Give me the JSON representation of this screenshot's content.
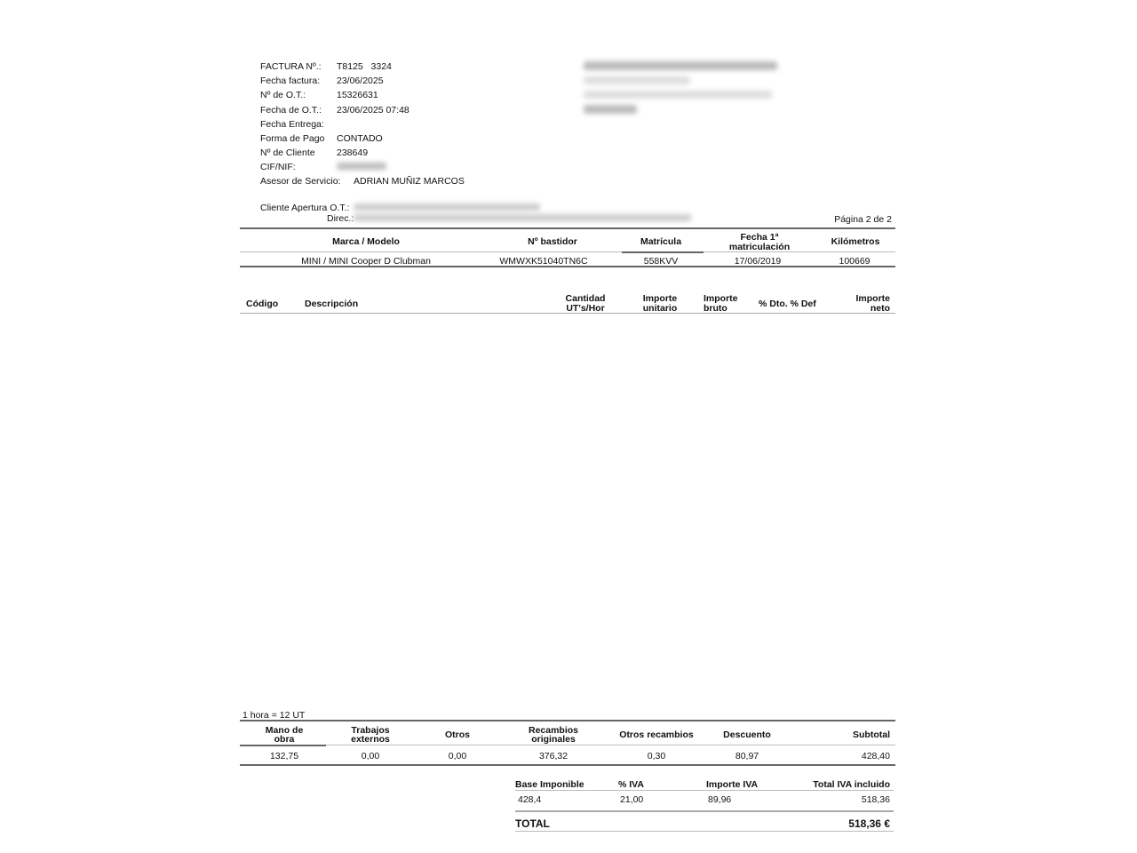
{
  "header": {
    "fields": [
      {
        "label": "FACTURA Nº.:",
        "value": "T8125   3324"
      },
      {
        "label": "Fecha factura:",
        "value": "23/06/2025"
      },
      {
        "label": "Nº de O.T.:",
        "value": "15326631"
      },
      {
        "label": "Fecha de O.T.:",
        "value": "23/06/2025 07:48"
      },
      {
        "label": "Fecha Entrega:",
        "value": ""
      },
      {
        "label": "Forma de Pago",
        "value": "CONTADO"
      },
      {
        "label": "Nº de Cliente",
        "value": "238649"
      },
      {
        "label": "CIF/NIF:",
        "value": ""
      }
    ],
    "advisor_label": "Asesor de Servicio:",
    "advisor_value": "ADRIAN MUÑIZ MARCOS",
    "client_label": "Cliente Apertura O.T.:",
    "address_label": "Direc.:",
    "page": "Página 2 de 2"
  },
  "vehicle": {
    "headers": [
      "Marca / Modelo",
      "Nº bastidor",
      "Matrícula",
      "Fecha 1ª",
      "matriculación",
      "Kilómetros"
    ],
    "values": [
      "MINI / MINI Cooper D Clubman",
      "WMWXK51040TN6C",
      "558KVV",
      "17/06/2019",
      "100669"
    ]
  },
  "items": {
    "headers": {
      "codigo": "Código",
      "descripcion": "Descripción",
      "cantidad1": "Cantidad",
      "cantidad2": "UT's/Hor",
      "unit1": "Importe",
      "unit2": "unitario",
      "bruto1": "Importe",
      "bruto2": "bruto",
      "dto": "% Dto. % Def",
      "neto1": "Importe",
      "neto2": "neto"
    }
  },
  "summary": {
    "note": "1 hora = 12 UT",
    "headers": [
      [
        "Mano de",
        "obra"
      ],
      [
        "Trabajos",
        "externos"
      ],
      [
        "Otros",
        ""
      ],
      [
        "Recambios",
        "originales"
      ],
      [
        "Otros recambios",
        ""
      ],
      [
        "Descuento",
        ""
      ],
      [
        "Subtotal",
        ""
      ]
    ],
    "values": [
      "132,75",
      "0,00",
      "0,00",
      "376,32",
      "0,30",
      "80,97",
      "428,40"
    ]
  },
  "tax": {
    "headers": [
      "Base Imponible",
      "% IVA",
      "Importe IVA",
      "Total IVA incluido"
    ],
    "values": [
      "428,4",
      "21,00",
      "89,96",
      "518,36"
    ],
    "total_label": "TOTAL",
    "total_value": "518,36 €"
  }
}
